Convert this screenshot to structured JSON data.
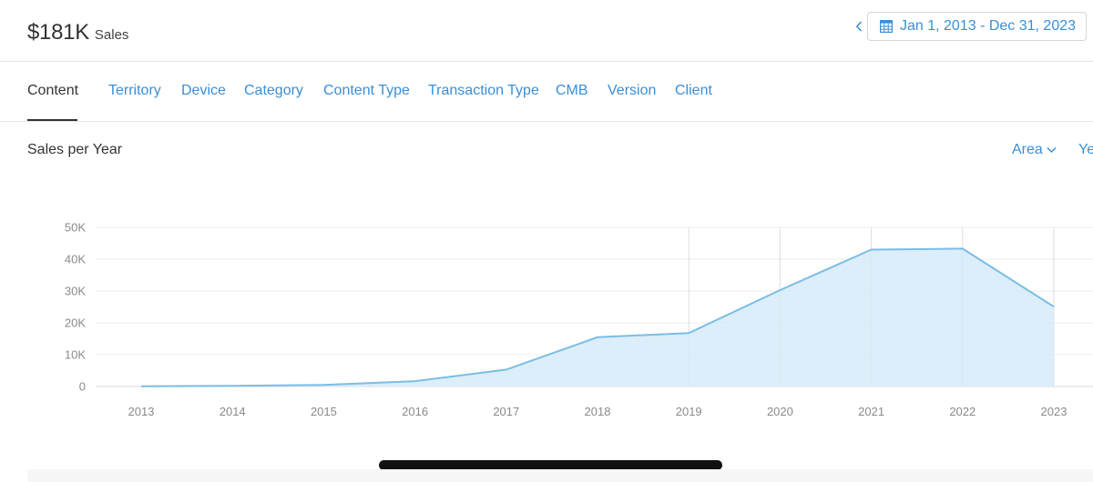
{
  "header": {
    "total_value": "$181K",
    "total_label": "Sales",
    "date_range": "Jan 1, 2013 - Dec 31, 2023",
    "prev_icon": "chevron-left-icon",
    "calendar_icon": "calendar-icon"
  },
  "tabs": [
    {
      "label": "Content",
      "active": true
    },
    {
      "label": "Territory"
    },
    {
      "label": "Device"
    },
    {
      "label": "Category"
    },
    {
      "label": "Content Type"
    },
    {
      "label": "Transaction Type"
    },
    {
      "label": "CMB"
    },
    {
      "label": "Version"
    },
    {
      "label": "Client"
    }
  ],
  "section": {
    "title": "Sales per Year",
    "chart_type_label": "Area",
    "period_label": "Ye"
  },
  "colors": {
    "accent": "#3a8fd6",
    "area_fill": "#d6ebf8",
    "area_line": "#7bbde4",
    "grid": "#ececec"
  },
  "chart_data": {
    "type": "area",
    "title": "Sales per Year",
    "xlabel": "",
    "ylabel": "",
    "x": [
      "2013",
      "2014",
      "2015",
      "2016",
      "2017",
      "2018",
      "2019",
      "2020",
      "2021",
      "2022",
      "2023"
    ],
    "series": [
      {
        "values": [
          50,
          200,
          500,
          1700,
          5300,
          15500,
          16800,
          30300,
          43000,
          43300,
          25100
        ]
      }
    ],
    "yticks": [
      "0",
      "10K",
      "20K",
      "30K",
      "40K",
      "50K"
    ],
    "ylim": [
      0,
      50000
    ],
    "grid": true,
    "highlighted_x": [
      "2019",
      "2020",
      "2021",
      "2022",
      "2023"
    ]
  }
}
